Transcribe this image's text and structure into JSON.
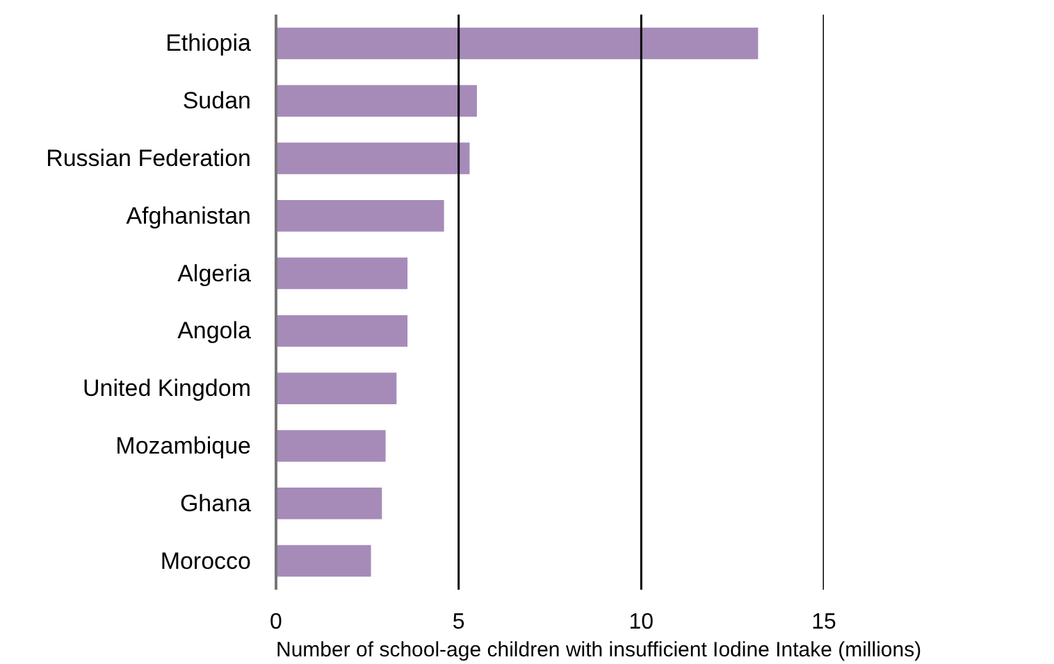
{
  "chart_data": {
    "type": "bar",
    "orientation": "horizontal",
    "xlabel": "Number of school-age children with insufficient Iodine Intake (millions)",
    "categories": [
      "Ethiopia",
      "Sudan",
      "Russian Federation",
      "Afghanistan",
      "Algeria",
      "Angola",
      "United Kingdom",
      "Mozambique",
      "Ghana",
      "Morocco"
    ],
    "values": [
      13.2,
      5.5,
      5.3,
      4.6,
      3.6,
      3.6,
      3.3,
      3.0,
      2.9,
      2.6
    ],
    "color": "#a68bb9",
    "xlim": [
      0,
      15
    ],
    "xticks": [
      0,
      5,
      10,
      15
    ],
    "grid": "x"
  }
}
